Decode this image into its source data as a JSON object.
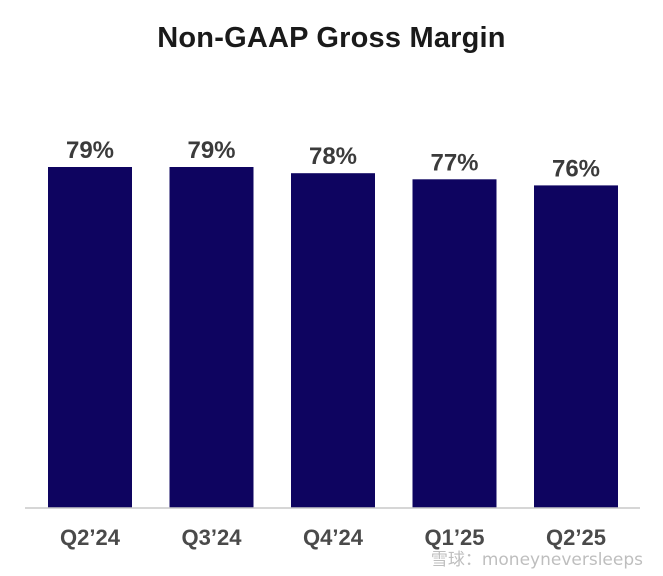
{
  "chart_data": {
    "type": "bar",
    "title": "Non-GAAP Gross Margin",
    "categories": [
      "Q2’24",
      "Q3’24",
      "Q4’24",
      "Q1’25",
      "Q2’25"
    ],
    "values": [
      79,
      79,
      78,
      77,
      76
    ],
    "data_labels": [
      "79%",
      "79%",
      "78%",
      "77%",
      "76%"
    ],
    "unit": "%",
    "bar_color": "#0e0460",
    "grid": false,
    "legend": "none"
  },
  "watermark": "雪球：moneyneversleeps"
}
